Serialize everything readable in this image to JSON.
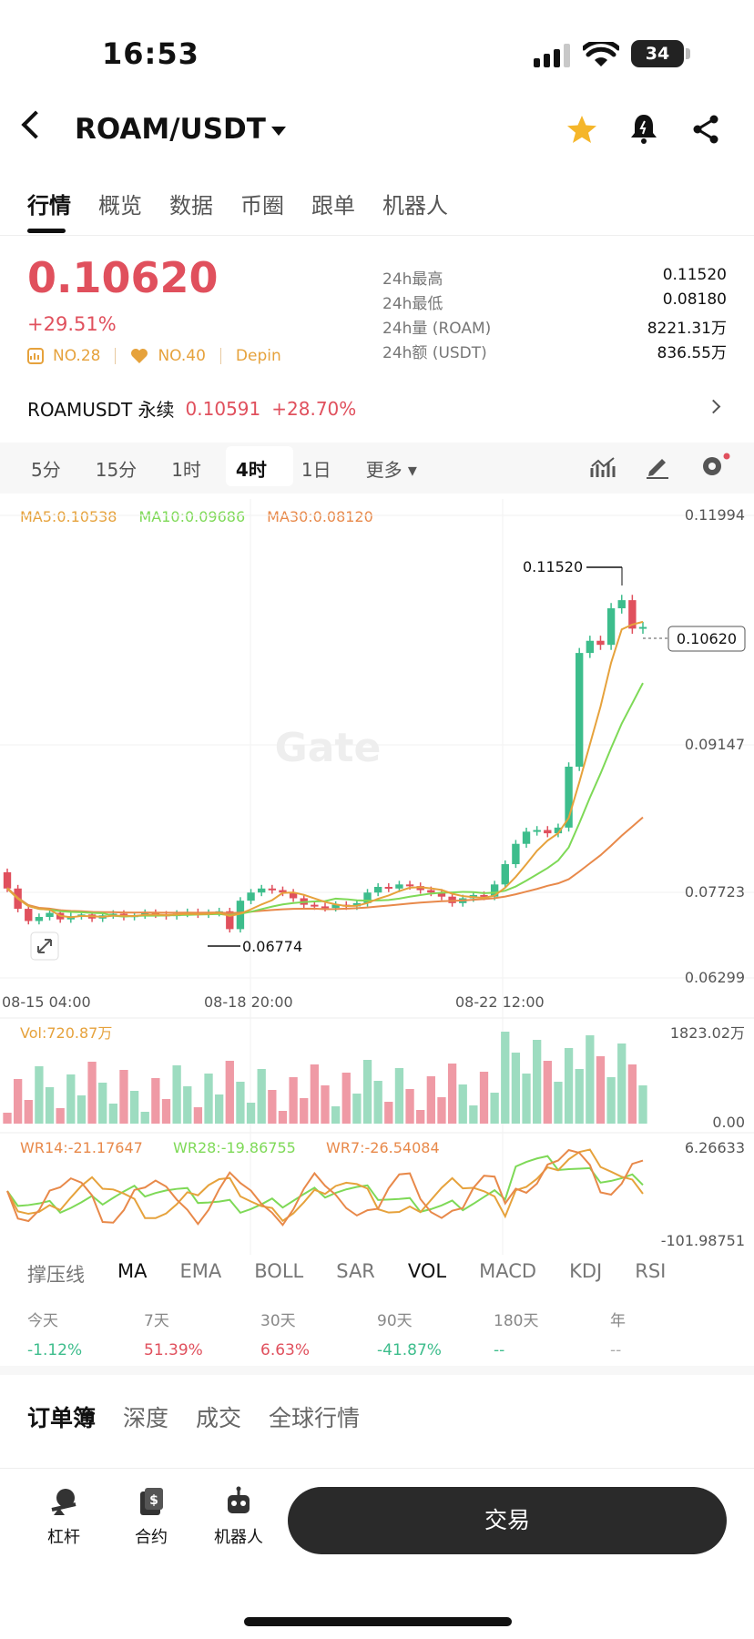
{
  "status": {
    "time": "16:53",
    "battery": "34"
  },
  "header": {
    "title": "ROAM/USDT"
  },
  "tabs": [
    "行情",
    "概览",
    "数据",
    "币圈",
    "跟单",
    "机器人"
  ],
  "price": {
    "last": "0.10620",
    "change": "+29.51%",
    "badges": [
      "NO.28",
      "NO.40",
      "Depin"
    ]
  },
  "stats": [
    {
      "label": "24h最高",
      "value": "0.11520"
    },
    {
      "label": "24h最低",
      "value": "0.08180"
    },
    {
      "label": "24h量 (ROAM)",
      "value": "8221.31万"
    },
    {
      "label": "24h额 (USDT)",
      "value": "836.55万"
    }
  ],
  "perpetual": {
    "name": "ROAMUSDT 永续",
    "price": "0.10591",
    "change": "+28.70%"
  },
  "timeframes": [
    "5分",
    "15分",
    "1时",
    "4时",
    "1日",
    "更多"
  ],
  "timeframe_selected": "4时",
  "chart": {
    "ma": {
      "ma5": "MA5:0.10538",
      "ma10": "MA10:0.09686",
      "ma30": "MA30:0.08120"
    },
    "price_axis": [
      "0.11994",
      "0.09147",
      "0.07723",
      "0.06299"
    ],
    "current_tag": "0.10620",
    "high_tag": "0.11520",
    "low_tag": "0.06774",
    "time_axis": [
      "08-15 04:00",
      "08-18 20:00",
      "08-22 12:00"
    ],
    "vol_label": "Vol:720.87万",
    "vol_axis": [
      "1823.02万",
      "0.00"
    ],
    "wr": {
      "wr14": "WR14:-21.17647",
      "wr28": "WR28:-19.86755",
      "wr7": "WR7:-26.54084"
    },
    "wr_axis": [
      "6.26633",
      "-101.98751"
    ],
    "watermark": "Gate",
    "colors": {
      "up": "#3dbd8c",
      "down": "#e0505d",
      "ma5": "#e6a23c",
      "ma10": "#7ed957",
      "ma30": "#e8894a"
    }
  },
  "indicators": [
    "撑压线",
    "MA",
    "EMA",
    "BOLL",
    "SAR",
    "VOL",
    "MACD",
    "KDJ",
    "RSI"
  ],
  "performance": [
    {
      "label": "今天",
      "value": "-1.12%",
      "tone": "green"
    },
    {
      "label": "7天",
      "value": "51.39%",
      "tone": "red"
    },
    {
      "label": "30天",
      "value": "6.63%",
      "tone": "red"
    },
    {
      "label": "90天",
      "value": "-41.87%",
      "tone": "green"
    },
    {
      "label": "180天",
      "value": "--",
      "tone": "green"
    },
    {
      "label": "年",
      "value": "--",
      "tone": "grey"
    }
  ],
  "book_tabs": [
    "订单簿",
    "深度",
    "成交",
    "全球行情"
  ],
  "bottom": {
    "items": [
      "杠杆",
      "合约",
      "机器人"
    ],
    "trade": "交易"
  }
}
